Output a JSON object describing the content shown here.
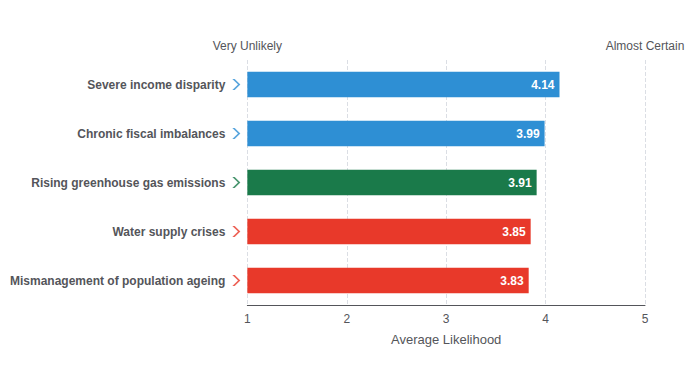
{
  "chart_data": {
    "type": "bar",
    "orientation": "horizontal",
    "categories": [
      "Mismanagement of population ageing",
      "Water supply crises",
      "Rising greenhouse gas emissions",
      "Chronic fiscal imbalances",
      "Severe income disparity"
    ],
    "values": [
      3.83,
      3.85,
      3.91,
      3.99,
      4.14
    ],
    "colors": [
      "#e8392a",
      "#e8392a",
      "#1a7a4a",
      "#2e8fd4",
      "#2e8fd4"
    ],
    "xlabel": "Average Likelihood",
    "xlim": [
      1,
      5
    ],
    "xticks": [
      1,
      2,
      3,
      4,
      5
    ],
    "data_labels": true,
    "grid": true,
    "marker": "chevron",
    "annotations": [
      {
        "text": "Very Unlikely",
        "x": 1
      },
      {
        "text": "Almost Certain",
        "x": 5
      }
    ]
  }
}
